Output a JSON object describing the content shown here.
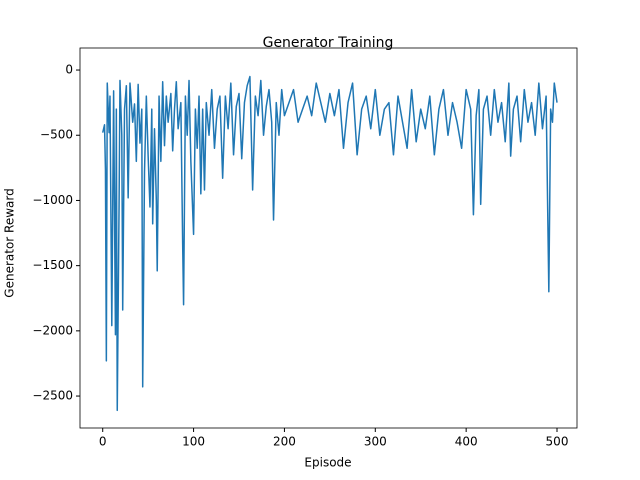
{
  "chart_data": {
    "type": "line",
    "title": "Generator Training",
    "xlabel": "Episode",
    "ylabel": "Generator Reward",
    "x": [
      0,
      2,
      3,
      4,
      5,
      7,
      8,
      10,
      12,
      14,
      15,
      16,
      18,
      19,
      21,
      22,
      24,
      26,
      28,
      30,
      33,
      35,
      37,
      39,
      41,
      43,
      44,
      46,
      48,
      50,
      52,
      54,
      55,
      57,
      59,
      60,
      62,
      64,
      66,
      68,
      70,
      72,
      75,
      77,
      79,
      81,
      83,
      86,
      88,
      89,
      91,
      93,
      95,
      97,
      100,
      102,
      104,
      106,
      108,
      110,
      112,
      114,
      117,
      120,
      123,
      126,
      129,
      132,
      135,
      138,
      141,
      144,
      147,
      150,
      153,
      156,
      159,
      162,
      165,
      168,
      171,
      174,
      177,
      180,
      183,
      186,
      188,
      191,
      194,
      197,
      200,
      205,
      210,
      215,
      220,
      225,
      230,
      235,
      240,
      245,
      250,
      255,
      260,
      265,
      270,
      275,
      280,
      285,
      290,
      295,
      300,
      305,
      310,
      315,
      320,
      325,
      330,
      335,
      340,
      345,
      350,
      355,
      360,
      365,
      370,
      375,
      380,
      385,
      390,
      395,
      400,
      405,
      408,
      411,
      414,
      416,
      419,
      423,
      427,
      431,
      435,
      439,
      443,
      447,
      449,
      452,
      456,
      460,
      464,
      468,
      472,
      476,
      480,
      484,
      488,
      491,
      493,
      495,
      497,
      500
    ],
    "values": [
      -480,
      -420,
      -760,
      -2230,
      -100,
      -480,
      -200,
      -1960,
      -160,
      -2030,
      -300,
      -2610,
      -1040,
      -80,
      -500,
      -1840,
      -300,
      -120,
      -980,
      -100,
      -400,
      -260,
      -700,
      -110,
      -560,
      -300,
      -2430,
      -780,
      -200,
      -660,
      -1050,
      -300,
      -1180,
      -450,
      -1000,
      -1540,
      -200,
      -700,
      -90,
      -580,
      -200,
      -400,
      -180,
      -620,
      -300,
      -90,
      -450,
      -250,
      -1340,
      -1800,
      -200,
      -500,
      -80,
      -700,
      -1260,
      -300,
      -600,
      -200,
      -950,
      -300,
      -920,
      -250,
      -500,
      -150,
      -600,
      -300,
      -200,
      -830,
      -200,
      -450,
      -100,
      -650,
      -280,
      -180,
      -680,
      -250,
      -120,
      -50,
      -920,
      -200,
      -350,
      -80,
      -500,
      -280,
      -150,
      -400,
      -1150,
      -250,
      -500,
      -150,
      -350,
      -250,
      -150,
      -400,
      -300,
      -200,
      -350,
      -100,
      -250,
      -400,
      -180,
      -350,
      -150,
      -600,
      -250,
      -100,
      -650,
      -300,
      -200,
      -450,
      -150,
      -500,
      -300,
      -250,
      -650,
      -200,
      -400,
      -600,
      -150,
      -550,
      -300,
      -450,
      -200,
      -650,
      -300,
      -150,
      -500,
      -250,
      -400,
      -600,
      -150,
      -300,
      -1110,
      -350,
      -150,
      -1030,
      -300,
      -200,
      -500,
      -150,
      -400,
      -250,
      -550,
      -100,
      -660,
      -300,
      -200,
      -550,
      -150,
      -400,
      -250,
      -500,
      -100,
      -450,
      -200,
      -1700,
      -300,
      -400,
      -100,
      -250
    ],
    "color": "#1f77b4",
    "xlim": [
      -25,
      522
    ],
    "ylim": [
      -2745,
      169
    ],
    "xticks": [
      0,
      100,
      200,
      300,
      400,
      500
    ],
    "yticks": [
      0,
      {
        "value": -500,
        "label": "−500"
      },
      {
        "value": -1000,
        "label": "−1000"
      },
      {
        "value": -1500,
        "label": "−1500"
      },
      {
        "value": -2000,
        "label": "−2000"
      },
      {
        "value": -2500,
        "label": "−2500"
      }
    ]
  }
}
